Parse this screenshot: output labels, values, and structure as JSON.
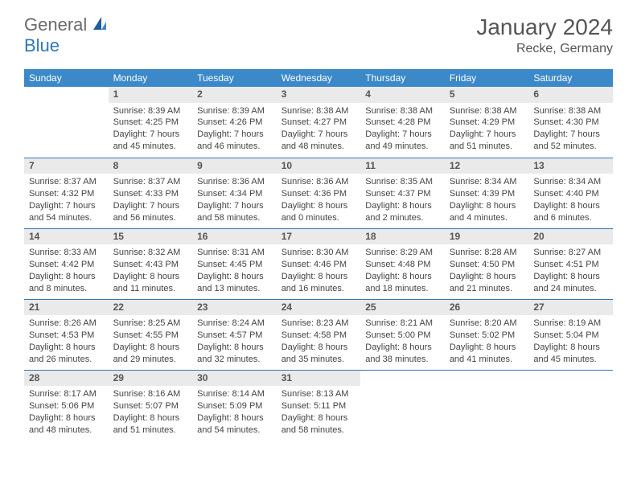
{
  "brand": {
    "part1": "General",
    "part2": "Blue"
  },
  "title": "January 2024",
  "location": "Recke, Germany",
  "dow": [
    "Sunday",
    "Monday",
    "Tuesday",
    "Wednesday",
    "Thursday",
    "Friday",
    "Saturday"
  ],
  "colors": {
    "header_bg": "#3b89c9",
    "rule": "#2f78b8",
    "daynum_bg": "#eaeaea",
    "text": "#444444"
  },
  "weeks": [
    [
      null,
      {
        "n": "1",
        "sr": "Sunrise: 8:39 AM",
        "ss": "Sunset: 4:25 PM",
        "d1": "Daylight: 7 hours",
        "d2": "and 45 minutes."
      },
      {
        "n": "2",
        "sr": "Sunrise: 8:39 AM",
        "ss": "Sunset: 4:26 PM",
        "d1": "Daylight: 7 hours",
        "d2": "and 46 minutes."
      },
      {
        "n": "3",
        "sr": "Sunrise: 8:38 AM",
        "ss": "Sunset: 4:27 PM",
        "d1": "Daylight: 7 hours",
        "d2": "and 48 minutes."
      },
      {
        "n": "4",
        "sr": "Sunrise: 8:38 AM",
        "ss": "Sunset: 4:28 PM",
        "d1": "Daylight: 7 hours",
        "d2": "and 49 minutes."
      },
      {
        "n": "5",
        "sr": "Sunrise: 8:38 AM",
        "ss": "Sunset: 4:29 PM",
        "d1": "Daylight: 7 hours",
        "d2": "and 51 minutes."
      },
      {
        "n": "6",
        "sr": "Sunrise: 8:38 AM",
        "ss": "Sunset: 4:30 PM",
        "d1": "Daylight: 7 hours",
        "d2": "and 52 minutes."
      }
    ],
    [
      {
        "n": "7",
        "sr": "Sunrise: 8:37 AM",
        "ss": "Sunset: 4:32 PM",
        "d1": "Daylight: 7 hours",
        "d2": "and 54 minutes."
      },
      {
        "n": "8",
        "sr": "Sunrise: 8:37 AM",
        "ss": "Sunset: 4:33 PM",
        "d1": "Daylight: 7 hours",
        "d2": "and 56 minutes."
      },
      {
        "n": "9",
        "sr": "Sunrise: 8:36 AM",
        "ss": "Sunset: 4:34 PM",
        "d1": "Daylight: 7 hours",
        "d2": "and 58 minutes."
      },
      {
        "n": "10",
        "sr": "Sunrise: 8:36 AM",
        "ss": "Sunset: 4:36 PM",
        "d1": "Daylight: 8 hours",
        "d2": "and 0 minutes."
      },
      {
        "n": "11",
        "sr": "Sunrise: 8:35 AM",
        "ss": "Sunset: 4:37 PM",
        "d1": "Daylight: 8 hours",
        "d2": "and 2 minutes."
      },
      {
        "n": "12",
        "sr": "Sunrise: 8:34 AM",
        "ss": "Sunset: 4:39 PM",
        "d1": "Daylight: 8 hours",
        "d2": "and 4 minutes."
      },
      {
        "n": "13",
        "sr": "Sunrise: 8:34 AM",
        "ss": "Sunset: 4:40 PM",
        "d1": "Daylight: 8 hours",
        "d2": "and 6 minutes."
      }
    ],
    [
      {
        "n": "14",
        "sr": "Sunrise: 8:33 AM",
        "ss": "Sunset: 4:42 PM",
        "d1": "Daylight: 8 hours",
        "d2": "and 8 minutes."
      },
      {
        "n": "15",
        "sr": "Sunrise: 8:32 AM",
        "ss": "Sunset: 4:43 PM",
        "d1": "Daylight: 8 hours",
        "d2": "and 11 minutes."
      },
      {
        "n": "16",
        "sr": "Sunrise: 8:31 AM",
        "ss": "Sunset: 4:45 PM",
        "d1": "Daylight: 8 hours",
        "d2": "and 13 minutes."
      },
      {
        "n": "17",
        "sr": "Sunrise: 8:30 AM",
        "ss": "Sunset: 4:46 PM",
        "d1": "Daylight: 8 hours",
        "d2": "and 16 minutes."
      },
      {
        "n": "18",
        "sr": "Sunrise: 8:29 AM",
        "ss": "Sunset: 4:48 PM",
        "d1": "Daylight: 8 hours",
        "d2": "and 18 minutes."
      },
      {
        "n": "19",
        "sr": "Sunrise: 8:28 AM",
        "ss": "Sunset: 4:50 PM",
        "d1": "Daylight: 8 hours",
        "d2": "and 21 minutes."
      },
      {
        "n": "20",
        "sr": "Sunrise: 8:27 AM",
        "ss": "Sunset: 4:51 PM",
        "d1": "Daylight: 8 hours",
        "d2": "and 24 minutes."
      }
    ],
    [
      {
        "n": "21",
        "sr": "Sunrise: 8:26 AM",
        "ss": "Sunset: 4:53 PM",
        "d1": "Daylight: 8 hours",
        "d2": "and 26 minutes."
      },
      {
        "n": "22",
        "sr": "Sunrise: 8:25 AM",
        "ss": "Sunset: 4:55 PM",
        "d1": "Daylight: 8 hours",
        "d2": "and 29 minutes."
      },
      {
        "n": "23",
        "sr": "Sunrise: 8:24 AM",
        "ss": "Sunset: 4:57 PM",
        "d1": "Daylight: 8 hours",
        "d2": "and 32 minutes."
      },
      {
        "n": "24",
        "sr": "Sunrise: 8:23 AM",
        "ss": "Sunset: 4:58 PM",
        "d1": "Daylight: 8 hours",
        "d2": "and 35 minutes."
      },
      {
        "n": "25",
        "sr": "Sunrise: 8:21 AM",
        "ss": "Sunset: 5:00 PM",
        "d1": "Daylight: 8 hours",
        "d2": "and 38 minutes."
      },
      {
        "n": "26",
        "sr": "Sunrise: 8:20 AM",
        "ss": "Sunset: 5:02 PM",
        "d1": "Daylight: 8 hours",
        "d2": "and 41 minutes."
      },
      {
        "n": "27",
        "sr": "Sunrise: 8:19 AM",
        "ss": "Sunset: 5:04 PM",
        "d1": "Daylight: 8 hours",
        "d2": "and 45 minutes."
      }
    ],
    [
      {
        "n": "28",
        "sr": "Sunrise: 8:17 AM",
        "ss": "Sunset: 5:06 PM",
        "d1": "Daylight: 8 hours",
        "d2": "and 48 minutes."
      },
      {
        "n": "29",
        "sr": "Sunrise: 8:16 AM",
        "ss": "Sunset: 5:07 PM",
        "d1": "Daylight: 8 hours",
        "d2": "and 51 minutes."
      },
      {
        "n": "30",
        "sr": "Sunrise: 8:14 AM",
        "ss": "Sunset: 5:09 PM",
        "d1": "Daylight: 8 hours",
        "d2": "and 54 minutes."
      },
      {
        "n": "31",
        "sr": "Sunrise: 8:13 AM",
        "ss": "Sunset: 5:11 PM",
        "d1": "Daylight: 8 hours",
        "d2": "and 58 minutes."
      },
      null,
      null,
      null
    ]
  ]
}
